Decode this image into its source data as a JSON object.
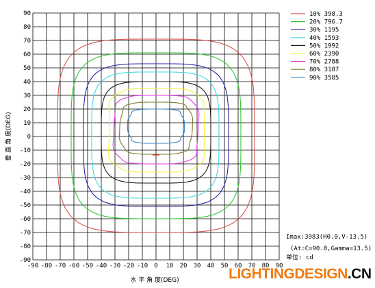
{
  "chart_data": {
    "type": "line",
    "subtype": "isocandela contour plot",
    "xlabel": "水 平 角 度(DEG)",
    "ylabel": "垂 直 角 度(DEG)",
    "xlim": [
      -90,
      90
    ],
    "ylim": [
      -90,
      90
    ],
    "x_ticks": [
      "-90",
      "-80",
      "-70",
      "-60",
      "-50",
      "-40",
      "-30",
      "-20",
      "-10",
      "0",
      "10",
      "20",
      "30",
      "40",
      "50",
      "60",
      "70",
      "80",
      "90"
    ],
    "y_ticks": [
      "90",
      "80",
      "70",
      "60",
      "50",
      "40",
      "30",
      "20",
      "10",
      "0",
      "-10",
      "-20",
      "-30",
      "-40",
      "-50",
      "-60",
      "-70",
      "-80",
      "-90"
    ],
    "grid": true,
    "legend_position": "top-right",
    "series": [
      {
        "name": "10% 398.3",
        "color": "#d9534f",
        "contour": {
          "x_extent": [
            -72,
            72
          ],
          "y_extent": [
            -70,
            71
          ]
        }
      },
      {
        "name": "20% 796.7",
        "color": "#2fc52f",
        "contour": {
          "x_extent": [
            -62,
            62
          ],
          "y_extent": [
            -60,
            61
          ]
        }
      },
      {
        "name": "30% 1195",
        "color": "#2727a8",
        "contour": {
          "x_extent": [
            -53,
            53
          ],
          "y_extent": [
            -51,
            53
          ]
        }
      },
      {
        "name": "40% 1593",
        "color": "#3fd7e0",
        "contour": {
          "x_extent": [
            -47,
            46
          ],
          "y_extent": [
            -45,
            47
          ]
        }
      },
      {
        "name": "50% 1992",
        "color": "#1a1a1a",
        "contour": {
          "x_extent": [
            -40,
            40
          ],
          "y_extent": [
            -34,
            40
          ]
        }
      },
      {
        "name": "60% 2390",
        "color": "#f2f244",
        "contour": {
          "x_extent": [
            -35,
            36
          ],
          "y_extent": [
            -26,
            35
          ]
        }
      },
      {
        "name": "70% 2788",
        "color": "#e23ee2",
        "contour": {
          "x_extent": [
            -31,
            31
          ],
          "y_extent": [
            -20,
            30
          ]
        }
      },
      {
        "name": "80% 3187",
        "color": "#7a7a2a",
        "contour": {
          "x_extent": [
            -26,
            26
          ],
          "y_extent": [
            -13,
            25
          ]
        }
      },
      {
        "name": "90% 3585",
        "color": "#3a88c8",
        "contour": {
          "x_extent": [
            -20,
            20
          ],
          "y_extent": [
            -5,
            20
          ]
        }
      }
    ],
    "peak_marker": {
      "x": 0,
      "y": -13.5,
      "color": "#dd2222"
    },
    "annotations": [
      "Imax:3983(H0.0,V-13.5)",
      "(At:C=90.0,Gamma=13.5)",
      "单位: cd"
    ]
  },
  "watermark": {
    "main": "LIGHTINGDESIGN",
    "suffix": ".CN"
  }
}
